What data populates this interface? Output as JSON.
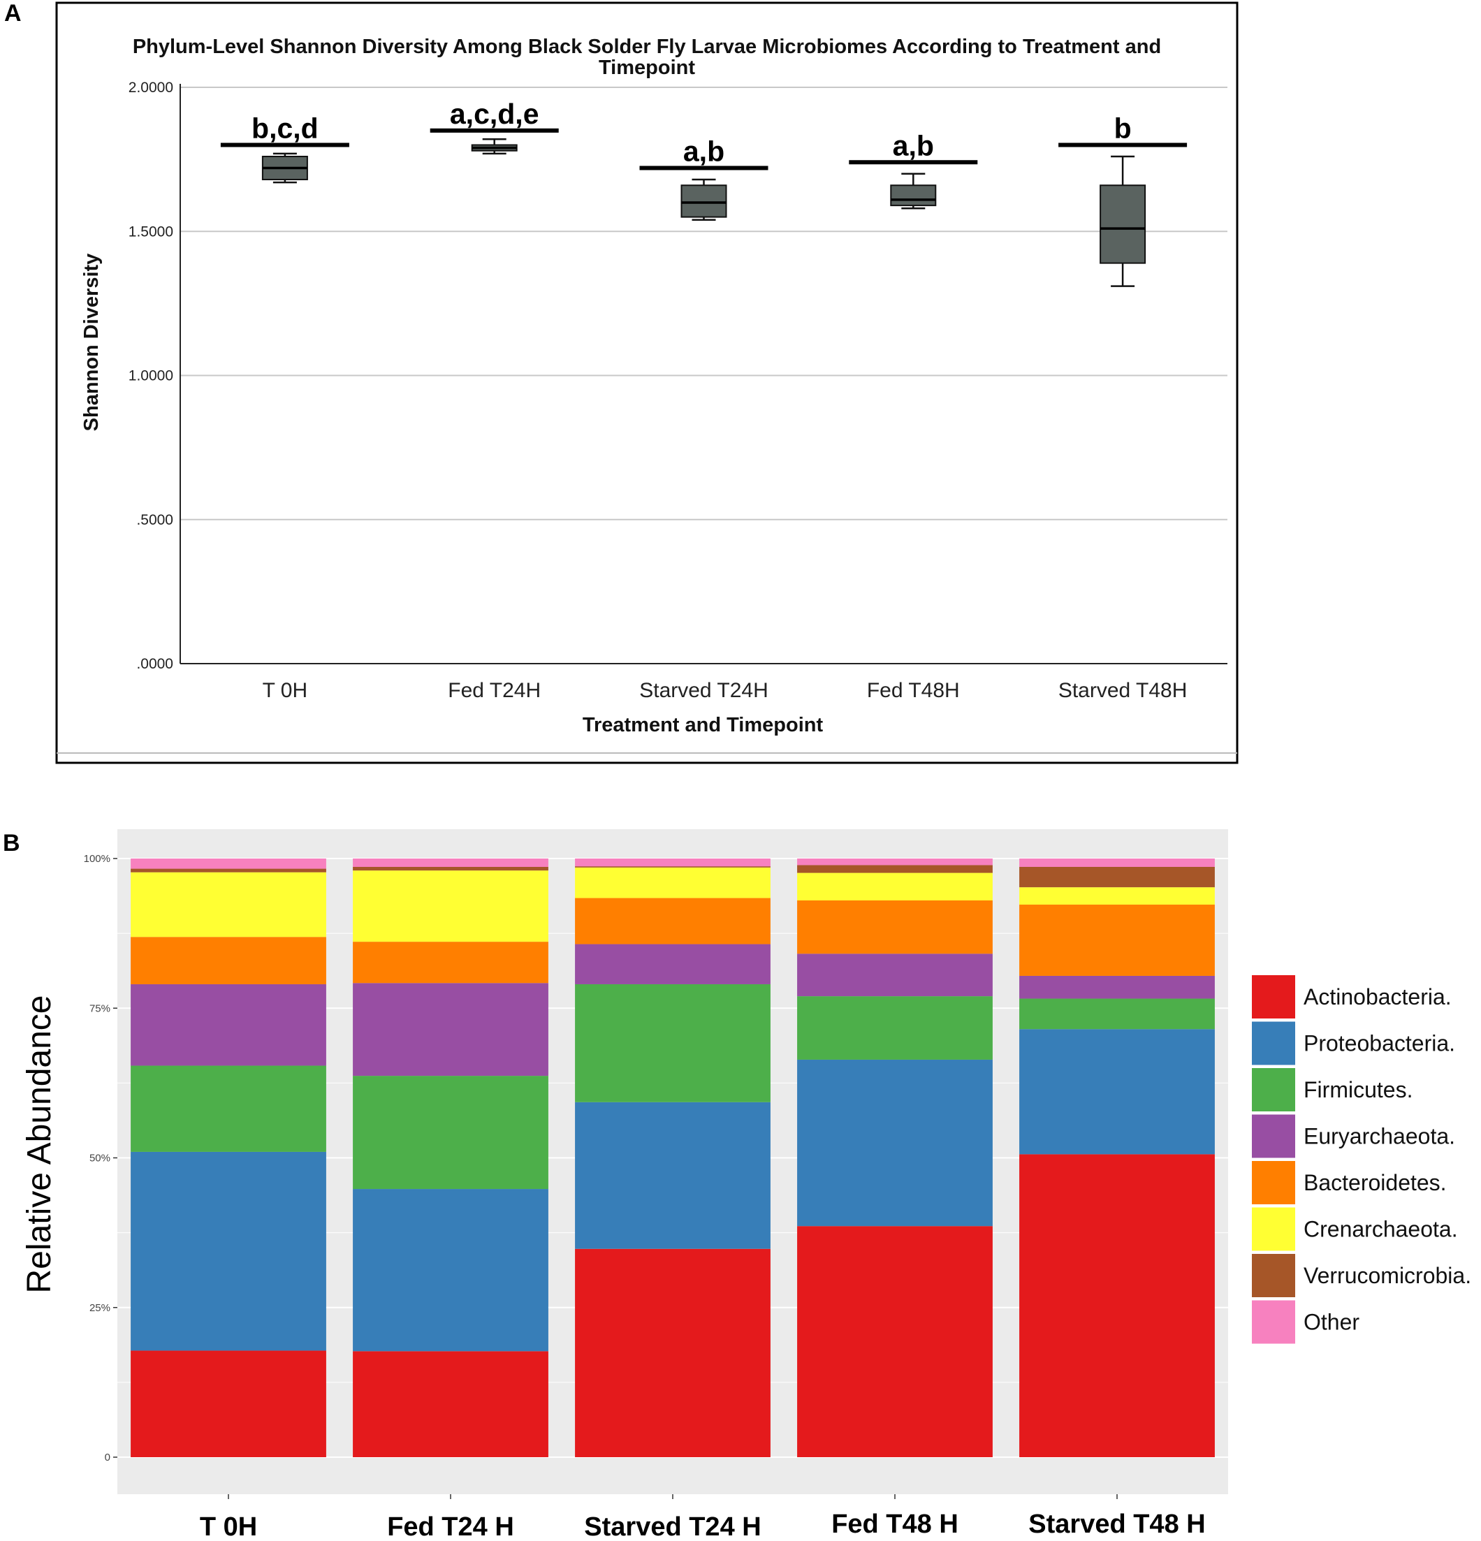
{
  "panels": {
    "a_letter": "A",
    "b_letter": "B"
  },
  "chart_data": [
    {
      "type": "box",
      "title_line1": "Phylum-Level Shannon Diversity Among Black Solder Fly Larvae Microbiomes According to Treatment and",
      "title_line2": "Timepoint",
      "xlabel": "Treatment and Timepoint",
      "ylabel": "Shannon Diversity",
      "ylim": [
        0,
        2.0
      ],
      "yticks": [
        {
          "value": 0,
          "label": ".0000"
        },
        {
          "value": 0.5,
          "label": ".5000"
        },
        {
          "value": 1.0,
          "label": "1.0000"
        },
        {
          "value": 1.5,
          "label": "1.5000"
        },
        {
          "value": 2.0,
          "label": "2.0000"
        }
      ],
      "categories": [
        "T 0H",
        "Fed T24H",
        "Starved T24H",
        "Fed T48H",
        "Starved T48H"
      ],
      "boxes": [
        {
          "min": 1.67,
          "q1": 1.68,
          "median": 1.72,
          "q3": 1.76,
          "max": 1.77
        },
        {
          "min": 1.77,
          "q1": 1.78,
          "median": 1.79,
          "q3": 1.8,
          "max": 1.82
        },
        {
          "min": 1.54,
          "q1": 1.55,
          "median": 1.6,
          "q3": 1.66,
          "max": 1.68
        },
        {
          "min": 1.58,
          "q1": 1.59,
          "median": 1.61,
          "q3": 1.66,
          "max": 1.7
        },
        {
          "min": 1.31,
          "q1": 1.39,
          "median": 1.51,
          "q3": 1.66,
          "max": 1.76
        }
      ],
      "significance": [
        {
          "label": "b,c,d",
          "y": 1.8
        },
        {
          "label": "a,c,d,e",
          "y": 1.85
        },
        {
          "label": "a,b",
          "y": 1.72
        },
        {
          "label": "a,b",
          "y": 1.74
        },
        {
          "label": "b",
          "y": 1.8
        }
      ],
      "box_color": "#5a6360"
    },
    {
      "type": "stacked_bar",
      "ylabel": "Relative Abundance",
      "ylim": [
        0,
        100
      ],
      "yticks": [
        {
          "value": 0,
          "label": "0"
        },
        {
          "value": 25,
          "label": "25%"
        },
        {
          "value": 50,
          "label": "50%"
        },
        {
          "value": 75,
          "label": "75%"
        },
        {
          "value": 100,
          "label": "100%"
        }
      ],
      "categories": [
        "T 0H",
        "Fed T24 H",
        "Starved T24 H",
        "Fed T48 H",
        "Starved T48 H"
      ],
      "series": [
        {
          "name": "Actinobacteria.",
          "color": "#e41a1c",
          "values": [
            17.8,
            17.7,
            34.8,
            38.6,
            50.6
          ]
        },
        {
          "name": "Proteobacteria.",
          "color": "#377eb8",
          "values": [
            33.2,
            27.1,
            24.5,
            27.8,
            20.9
          ]
        },
        {
          "name": "Firmicutes.",
          "color": "#4daf4a",
          "values": [
            14.4,
            18.9,
            19.7,
            10.6,
            5.1
          ]
        },
        {
          "name": "Euryarchaeota.",
          "color": "#984ea3",
          "values": [
            13.6,
            15.5,
            6.7,
            7.1,
            3.8
          ]
        },
        {
          "name": "Bacteroidetes.",
          "color": "#ff7f00",
          "values": [
            7.9,
            6.9,
            7.7,
            8.9,
            11.9
          ]
        },
        {
          "name": "Crenarchaeota.",
          "color": "#ffff33",
          "values": [
            10.8,
            11.9,
            5.1,
            4.6,
            2.9
          ]
        },
        {
          "name": "Verrucomicrobia.",
          "color": "#a65628",
          "values": [
            0.6,
            0.6,
            0.2,
            1.3,
            3.4
          ]
        },
        {
          "name": "Other",
          "color": "#f781bf",
          "values": [
            1.7,
            1.4,
            1.3,
            1.1,
            1.4
          ]
        }
      ],
      "legend_position": "right"
    }
  ]
}
